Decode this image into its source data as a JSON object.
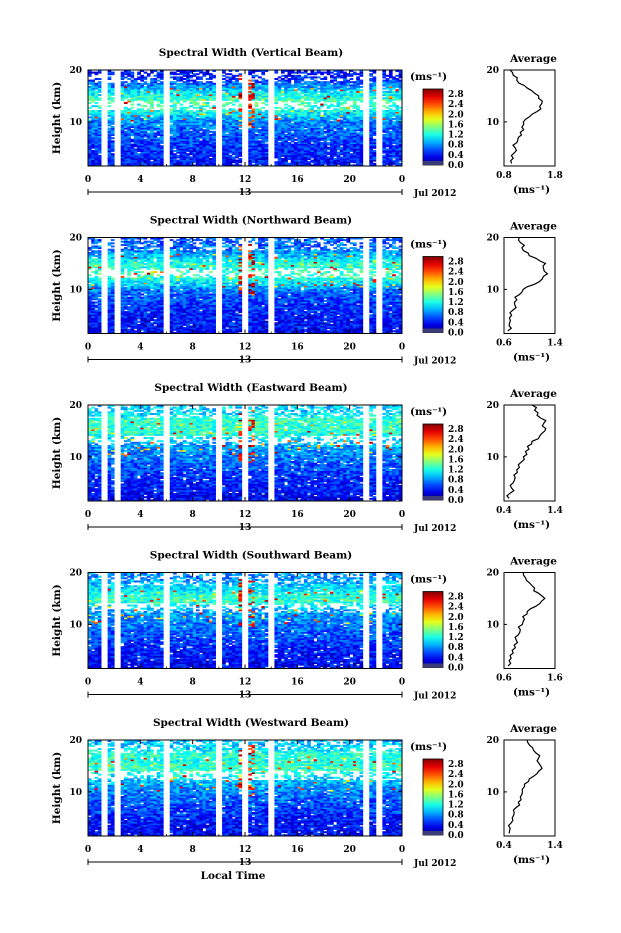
{
  "figure": {
    "bottom_label": "Local Time",
    "date_label": "Jul 2012",
    "date_day": "13",
    "colorbar_unit": "(ms⁻¹)",
    "average_title": "Average"
  },
  "colorbar_ticks": [
    "2.8",
    "2.4",
    "2.0",
    "1.6",
    "1.2",
    "0.8",
    "0.4",
    "0.0"
  ],
  "chart_data": [
    {
      "type": "heatmap",
      "title": "Spectral Width (Vertical Beam)",
      "xlabel": "Local Time",
      "ylabel": "Height (km)",
      "xlim": [
        0,
        24
      ],
      "ylim": [
        1.5,
        20
      ],
      "xticks": [
        "0",
        "4",
        "8",
        "12",
        "16",
        "20",
        "0"
      ],
      "yticks": [
        "20",
        "10"
      ],
      "colorbar": {
        "label": "(ms⁻¹)",
        "range": [
          0.0,
          3.0
        ],
        "ticks": [
          2.8,
          2.4,
          2.0,
          1.6,
          1.2,
          0.8,
          0.4,
          0.0
        ]
      },
      "data_gaps_hours": [
        [
          1.1,
          1.5
        ],
        [
          2.1,
          2.5
        ],
        [
          5.8,
          6.2
        ],
        [
          9.8,
          10.2
        ],
        [
          11.8,
          12.2
        ],
        [
          13.8,
          14.2
        ],
        [
          21.1,
          21.4
        ],
        [
          22.0,
          22.4
        ]
      ],
      "average_profile": {
        "title": "Average",
        "xlabel": "(ms⁻¹)",
        "xlim": [
          0.8,
          1.8
        ],
        "xticks": [
          "0.8",
          "1.8"
        ],
        "ylim": [
          1.5,
          20
        ],
        "height_km": [
          2,
          3,
          4,
          5,
          6,
          7,
          8,
          9,
          10,
          11,
          12,
          13,
          14,
          15,
          16,
          17,
          18,
          19,
          20
        ],
        "width": [
          0.95,
          0.98,
          1.0,
          1.02,
          1.05,
          1.08,
          1.12,
          1.15,
          1.18,
          1.3,
          1.45,
          1.5,
          1.55,
          1.48,
          1.35,
          1.2,
          1.05,
          0.98,
          0.92
        ]
      }
    },
    {
      "type": "heatmap",
      "title": "Spectral Width (Northward Beam)",
      "xlabel": "Local Time",
      "ylabel": "Height (km)",
      "xlim": [
        0,
        24
      ],
      "ylim": [
        1.5,
        20
      ],
      "xticks": [
        "0",
        "4",
        "8",
        "12",
        "16",
        "20",
        "0"
      ],
      "yticks": [
        "20",
        "10"
      ],
      "colorbar": {
        "label": "(ms⁻¹)",
        "range": [
          0.0,
          3.0
        ],
        "ticks": [
          2.8,
          2.4,
          2.0,
          1.6,
          1.2,
          0.8,
          0.4,
          0.0
        ]
      },
      "data_gaps_hours": [
        [
          1.1,
          1.5
        ],
        [
          2.1,
          2.5
        ],
        [
          5.8,
          6.2
        ],
        [
          9.8,
          10.2
        ],
        [
          11.8,
          12.2
        ],
        [
          13.8,
          14.2
        ],
        [
          21.1,
          21.4
        ],
        [
          22.0,
          22.4
        ]
      ],
      "average_profile": {
        "title": "Average",
        "xlabel": "(ms⁻¹)",
        "xlim": [
          0.6,
          1.4
        ],
        "xticks": [
          "0.6",
          "1.4"
        ],
        "ylim": [
          1.5,
          20
        ],
        "height_km": [
          2,
          3,
          4,
          5,
          6,
          7,
          8,
          9,
          10,
          11,
          12,
          13,
          14,
          15,
          16,
          17,
          18,
          19,
          20
        ],
        "width": [
          0.66,
          0.68,
          0.7,
          0.72,
          0.74,
          0.77,
          0.8,
          0.84,
          0.9,
          1.08,
          1.2,
          1.28,
          1.22,
          1.25,
          1.1,
          0.98,
          0.88,
          0.86,
          0.84
        ]
      }
    },
    {
      "type": "heatmap",
      "title": "Spectral Width (Eastward Beam)",
      "xlabel": "Local Time",
      "ylabel": "Height (km)",
      "xlim": [
        0,
        24
      ],
      "ylim": [
        1.5,
        20
      ],
      "xticks": [
        "0",
        "4",
        "8",
        "12",
        "16",
        "20",
        "0"
      ],
      "yticks": [
        "20",
        "10"
      ],
      "colorbar": {
        "label": "(ms⁻¹)",
        "range": [
          0.0,
          3.0
        ],
        "ticks": [
          2.8,
          2.4,
          2.0,
          1.6,
          1.2,
          0.8,
          0.4,
          0.0
        ]
      },
      "data_gaps_hours": [
        [
          1.1,
          1.5
        ],
        [
          2.1,
          2.5
        ],
        [
          5.8,
          6.2
        ],
        [
          9.8,
          10.2
        ],
        [
          11.8,
          12.2
        ],
        [
          13.8,
          14.2
        ],
        [
          21.1,
          21.4
        ],
        [
          22.0,
          22.4
        ]
      ],
      "average_profile": {
        "title": "Average",
        "xlabel": "(ms⁻¹)",
        "xlim": [
          0.4,
          1.4
        ],
        "xticks": [
          "0.4",
          "1.4"
        ],
        "ylim": [
          1.5,
          20
        ],
        "height_km": [
          2,
          3,
          4,
          5,
          6,
          7,
          8,
          9,
          10,
          11,
          12,
          13,
          14,
          15,
          16,
          17,
          18,
          19,
          20
        ],
        "width": [
          0.5,
          0.52,
          0.55,
          0.58,
          0.62,
          0.66,
          0.7,
          0.74,
          0.78,
          0.82,
          0.86,
          0.95,
          1.1,
          1.2,
          1.15,
          1.22,
          1.05,
          1.0,
          0.95
        ]
      }
    },
    {
      "type": "heatmap",
      "title": "Spectral Width (Southward Beam)",
      "xlabel": "Local Time",
      "ylabel": "Height (km)",
      "xlim": [
        0,
        24
      ],
      "ylim": [
        1.5,
        20
      ],
      "xticks": [
        "0",
        "4",
        "8",
        "12",
        "16",
        "20",
        "0"
      ],
      "yticks": [
        "20",
        "10"
      ],
      "colorbar": {
        "label": "(ms⁻¹)",
        "range": [
          0.0,
          3.0
        ],
        "ticks": [
          2.8,
          2.4,
          2.0,
          1.6,
          1.2,
          0.8,
          0.4,
          0.0
        ]
      },
      "data_gaps_hours": [
        [
          1.1,
          1.5
        ],
        [
          2.1,
          2.5
        ],
        [
          5.8,
          6.2
        ],
        [
          9.8,
          10.2
        ],
        [
          11.8,
          12.2
        ],
        [
          13.8,
          14.2
        ],
        [
          21.1,
          21.4
        ],
        [
          22.0,
          22.4
        ]
      ],
      "average_profile": {
        "title": "Average",
        "xlabel": "(ms⁻¹)",
        "xlim": [
          0.6,
          1.6
        ],
        "xticks": [
          "0.6",
          "1.6"
        ],
        "ylim": [
          1.5,
          20
        ],
        "height_km": [
          2,
          3,
          4,
          5,
          6,
          7,
          8,
          9,
          10,
          11,
          12,
          13,
          14,
          15,
          16,
          17,
          18,
          19,
          20
        ],
        "width": [
          0.68,
          0.7,
          0.72,
          0.76,
          0.8,
          0.84,
          0.88,
          0.92,
          0.96,
          1.0,
          1.05,
          1.12,
          1.3,
          1.4,
          1.28,
          1.2,
          1.1,
          1.02,
          0.98
        ]
      }
    },
    {
      "type": "heatmap",
      "title": "Spectral Width (Westward Beam)",
      "xlabel": "Local Time",
      "ylabel": "Height (km)",
      "xlim": [
        0,
        24
      ],
      "ylim": [
        1.5,
        20
      ],
      "xticks": [
        "0",
        "4",
        "8",
        "12",
        "16",
        "20",
        "0"
      ],
      "yticks": [
        "20",
        "10"
      ],
      "colorbar": {
        "label": "(ms⁻¹)",
        "range": [
          0.0,
          3.0
        ],
        "ticks": [
          2.8,
          2.4,
          2.0,
          1.6,
          1.2,
          0.8,
          0.4,
          0.0
        ]
      },
      "data_gaps_hours": [
        [
          1.1,
          1.5
        ],
        [
          2.1,
          2.5
        ],
        [
          5.8,
          6.2
        ],
        [
          9.8,
          10.2
        ],
        [
          11.8,
          12.2
        ],
        [
          13.8,
          14.2
        ],
        [
          21.1,
          21.4
        ],
        [
          22.0,
          22.4
        ]
      ],
      "average_profile": {
        "title": "Average",
        "xlabel": "(ms⁻¹)",
        "xlim": [
          0.4,
          1.4
        ],
        "xticks": [
          "0.4",
          "1.4"
        ],
        "ylim": [
          1.5,
          20
        ],
        "height_km": [
          2,
          3,
          4,
          5,
          6,
          7,
          8,
          9,
          10,
          11,
          12,
          13,
          14,
          15,
          16,
          17,
          18,
          19,
          20
        ],
        "width": [
          0.5,
          0.52,
          0.54,
          0.56,
          0.6,
          0.64,
          0.68,
          0.72,
          0.76,
          0.8,
          0.88,
          0.98,
          1.08,
          1.12,
          1.05,
          1.1,
          0.98,
          0.9,
          0.85
        ]
      }
    }
  ]
}
